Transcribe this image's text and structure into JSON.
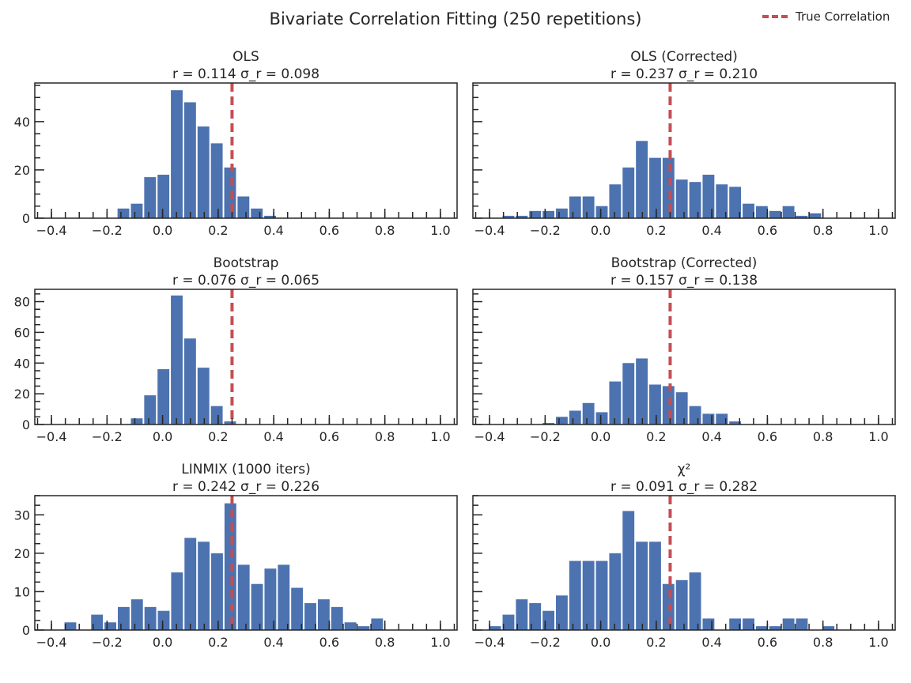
{
  "figure": {
    "suptitle": "Bivariate Correlation Fitting (250 repetitions)",
    "legend": {
      "label": "True Correlation",
      "color": "#c44e52",
      "placement": "upper right of figure"
    },
    "bar_color": "#4c72b0"
  },
  "chart_data": [
    {
      "type": "bar",
      "title": "OLS",
      "subtitle": {
        "r_label": "r = 0.114",
        "sigma_label": "σ_r = 0.098",
        "r": 0.114,
        "sigma_r": 0.098
      },
      "xlim": [
        -0.46,
        1.06
      ],
      "ylim": [
        0,
        56
      ],
      "xticks": [
        -0.4,
        -0.2,
        0.0,
        0.2,
        0.4,
        0.6,
        0.8,
        1.0
      ],
      "xtick_labels": [
        "−0.4",
        "−0.2",
        "0.0",
        "0.2",
        "0.4",
        "0.6",
        "0.8",
        "1.0"
      ],
      "yticks": [
        0,
        20,
        40
      ],
      "true_correlation": 0.25,
      "bin_width": 0.048,
      "bins": [
        {
          "x": -0.141,
          "y": 4
        },
        {
          "x": -0.093,
          "y": 6
        },
        {
          "x": -0.045,
          "y": 17
        },
        {
          "x": 0.003,
          "y": 18
        },
        {
          "x": 0.051,
          "y": 53
        },
        {
          "x": 0.099,
          "y": 48
        },
        {
          "x": 0.147,
          "y": 38
        },
        {
          "x": 0.195,
          "y": 31
        },
        {
          "x": 0.243,
          "y": 21
        },
        {
          "x": 0.291,
          "y": 9
        },
        {
          "x": 0.339,
          "y": 4
        },
        {
          "x": 0.387,
          "y": 1
        }
      ]
    },
    {
      "type": "bar",
      "title": "OLS (Corrected)",
      "subtitle": {
        "r_label": "r = 0.237",
        "sigma_label": "σ_r = 0.210",
        "r": 0.237,
        "sigma_r": 0.21
      },
      "xlim": [
        -0.46,
        1.06
      ],
      "ylim": [
        0,
        56
      ],
      "xticks": [
        -0.4,
        -0.2,
        0.0,
        0.2,
        0.4,
        0.6,
        0.8,
        1.0
      ],
      "xtick_labels": [
        "−0.4",
        "−0.2",
        "0.0",
        "0.2",
        "0.4",
        "0.6",
        "0.8",
        "1.0"
      ],
      "yticks": [
        0,
        20,
        40
      ],
      "true_correlation": 0.25,
      "bin_width": 0.048,
      "bins": [
        {
          "x": -0.332,
          "y": 1
        },
        {
          "x": -0.284,
          "y": 1
        },
        {
          "x": -0.236,
          "y": 3
        },
        {
          "x": -0.188,
          "y": 3
        },
        {
          "x": -0.14,
          "y": 4
        },
        {
          "x": -0.092,
          "y": 9
        },
        {
          "x": -0.044,
          "y": 9
        },
        {
          "x": 0.004,
          "y": 5
        },
        {
          "x": 0.052,
          "y": 14
        },
        {
          "x": 0.1,
          "y": 21
        },
        {
          "x": 0.148,
          "y": 32
        },
        {
          "x": 0.196,
          "y": 25
        },
        {
          "x": 0.244,
          "y": 25
        },
        {
          "x": 0.292,
          "y": 16
        },
        {
          "x": 0.34,
          "y": 15
        },
        {
          "x": 0.388,
          "y": 18
        },
        {
          "x": 0.436,
          "y": 14
        },
        {
          "x": 0.484,
          "y": 13
        },
        {
          "x": 0.532,
          "y": 6
        },
        {
          "x": 0.58,
          "y": 5
        },
        {
          "x": 0.628,
          "y": 3
        },
        {
          "x": 0.676,
          "y": 5
        },
        {
          "x": 0.724,
          "y": 1
        },
        {
          "x": 0.772,
          "y": 2
        }
      ]
    },
    {
      "type": "bar",
      "title": "Bootstrap",
      "subtitle": {
        "r_label": "r = 0.076",
        "sigma_label": "σ_r = 0.065",
        "r": 0.076,
        "sigma_r": 0.065
      },
      "xlim": [
        -0.46,
        1.06
      ],
      "ylim": [
        0,
        88
      ],
      "xticks": [
        -0.4,
        -0.2,
        0.0,
        0.2,
        0.4,
        0.6,
        0.8,
        1.0
      ],
      "xtick_labels": [
        "−0.4",
        "−0.2",
        "0.0",
        "0.2",
        "0.4",
        "0.6",
        "0.8",
        "1.0"
      ],
      "yticks": [
        0,
        20,
        40,
        60,
        80
      ],
      "true_correlation": 0.25,
      "bin_width": 0.048,
      "bins": [
        {
          "x": -0.093,
          "y": 4
        },
        {
          "x": -0.045,
          "y": 19
        },
        {
          "x": 0.003,
          "y": 36
        },
        {
          "x": 0.051,
          "y": 84
        },
        {
          "x": 0.099,
          "y": 56
        },
        {
          "x": 0.147,
          "y": 37
        },
        {
          "x": 0.195,
          "y": 12
        },
        {
          "x": 0.243,
          "y": 2
        }
      ]
    },
    {
      "type": "bar",
      "title": "Bootstrap (Corrected)",
      "subtitle": {
        "r_label": "r = 0.157",
        "sigma_label": "σ_r = 0.138",
        "r": 0.157,
        "sigma_r": 0.138
      },
      "xlim": [
        -0.46,
        1.06
      ],
      "ylim": [
        0,
        88
      ],
      "xticks": [
        -0.4,
        -0.2,
        0.0,
        0.2,
        0.4,
        0.6,
        0.8,
        1.0
      ],
      "xtick_labels": [
        "−0.4",
        "−0.2",
        "0.0",
        "0.2",
        "0.4",
        "0.6",
        "0.8",
        "1.0"
      ],
      "yticks": [
        0,
        20,
        40,
        60,
        80
      ],
      "true_correlation": 0.25,
      "bin_width": 0.048,
      "bins": [
        {
          "x": -0.188,
          "y": 1
        },
        {
          "x": -0.14,
          "y": 5
        },
        {
          "x": -0.092,
          "y": 9
        },
        {
          "x": -0.044,
          "y": 14
        },
        {
          "x": 0.004,
          "y": 8
        },
        {
          "x": 0.052,
          "y": 28
        },
        {
          "x": 0.1,
          "y": 40
        },
        {
          "x": 0.148,
          "y": 43
        },
        {
          "x": 0.196,
          "y": 26
        },
        {
          "x": 0.244,
          "y": 25
        },
        {
          "x": 0.292,
          "y": 21
        },
        {
          "x": 0.34,
          "y": 12
        },
        {
          "x": 0.388,
          "y": 7
        },
        {
          "x": 0.436,
          "y": 7
        },
        {
          "x": 0.484,
          "y": 2
        }
      ]
    },
    {
      "type": "bar",
      "title": "LINMIX (1000 iters)",
      "subtitle": {
        "r_label": "r = 0.242",
        "sigma_label": "σ_r = 0.226",
        "r": 0.242,
        "sigma_r": 0.226
      },
      "xlim": [
        -0.46,
        1.06
      ],
      "ylim": [
        0,
        35
      ],
      "xticks": [
        -0.4,
        -0.2,
        0.0,
        0.2,
        0.4,
        0.6,
        0.8,
        1.0
      ],
      "xtick_labels": [
        "−0.4",
        "−0.2",
        "0.0",
        "0.2",
        "0.4",
        "0.6",
        "0.8",
        "1.0"
      ],
      "yticks": [
        0,
        10,
        20,
        30
      ],
      "true_correlation": 0.25,
      "bin_width": 0.048,
      "bins": [
        {
          "x": -0.332,
          "y": 2
        },
        {
          "x": -0.236,
          "y": 4
        },
        {
          "x": -0.188,
          "y": 2
        },
        {
          "x": -0.14,
          "y": 6
        },
        {
          "x": -0.092,
          "y": 8
        },
        {
          "x": -0.044,
          "y": 6
        },
        {
          "x": 0.004,
          "y": 5
        },
        {
          "x": 0.052,
          "y": 15
        },
        {
          "x": 0.1,
          "y": 24
        },
        {
          "x": 0.148,
          "y": 23
        },
        {
          "x": 0.196,
          "y": 20
        },
        {
          "x": 0.244,
          "y": 33
        },
        {
          "x": 0.292,
          "y": 17
        },
        {
          "x": 0.34,
          "y": 12
        },
        {
          "x": 0.388,
          "y": 16
        },
        {
          "x": 0.436,
          "y": 17
        },
        {
          "x": 0.484,
          "y": 11
        },
        {
          "x": 0.532,
          "y": 7
        },
        {
          "x": 0.58,
          "y": 8
        },
        {
          "x": 0.628,
          "y": 6
        },
        {
          "x": 0.676,
          "y": 2
        },
        {
          "x": 0.724,
          "y": 1
        },
        {
          "x": 0.772,
          "y": 3
        }
      ]
    },
    {
      "type": "bar",
      "title": "χ²",
      "subtitle": {
        "r_label": "r = 0.091",
        "sigma_label": "σ_r = 0.282",
        "r": 0.091,
        "sigma_r": 0.282
      },
      "xlim": [
        -0.46,
        1.06
      ],
      "ylim": [
        0,
        35
      ],
      "xticks": [
        -0.4,
        -0.2,
        0.0,
        0.2,
        0.4,
        0.6,
        0.8,
        1.0
      ],
      "xtick_labels": [
        "−0.4",
        "−0.2",
        "0.0",
        "0.2",
        "0.4",
        "0.6",
        "0.8",
        "1.0"
      ],
      "yticks": [
        0,
        10,
        20,
        30
      ],
      "true_correlation": 0.25,
      "bin_width": 0.048,
      "bins": [
        {
          "x": -0.38,
          "y": 1
        },
        {
          "x": -0.332,
          "y": 4
        },
        {
          "x": -0.284,
          "y": 8
        },
        {
          "x": -0.236,
          "y": 7
        },
        {
          "x": -0.188,
          "y": 5
        },
        {
          "x": -0.14,
          "y": 9
        },
        {
          "x": -0.092,
          "y": 18
        },
        {
          "x": -0.044,
          "y": 18
        },
        {
          "x": 0.004,
          "y": 18
        },
        {
          "x": 0.052,
          "y": 20
        },
        {
          "x": 0.1,
          "y": 31
        },
        {
          "x": 0.148,
          "y": 23
        },
        {
          "x": 0.196,
          "y": 23
        },
        {
          "x": 0.244,
          "y": 12
        },
        {
          "x": 0.292,
          "y": 13
        },
        {
          "x": 0.34,
          "y": 15
        },
        {
          "x": 0.388,
          "y": 3
        },
        {
          "x": 0.484,
          "y": 3
        },
        {
          "x": 0.532,
          "y": 3
        },
        {
          "x": 0.58,
          "y": 1
        },
        {
          "x": 0.628,
          "y": 1
        },
        {
          "x": 0.676,
          "y": 3
        },
        {
          "x": 0.724,
          "y": 3
        },
        {
          "x": 0.82,
          "y": 1
        }
      ]
    }
  ]
}
